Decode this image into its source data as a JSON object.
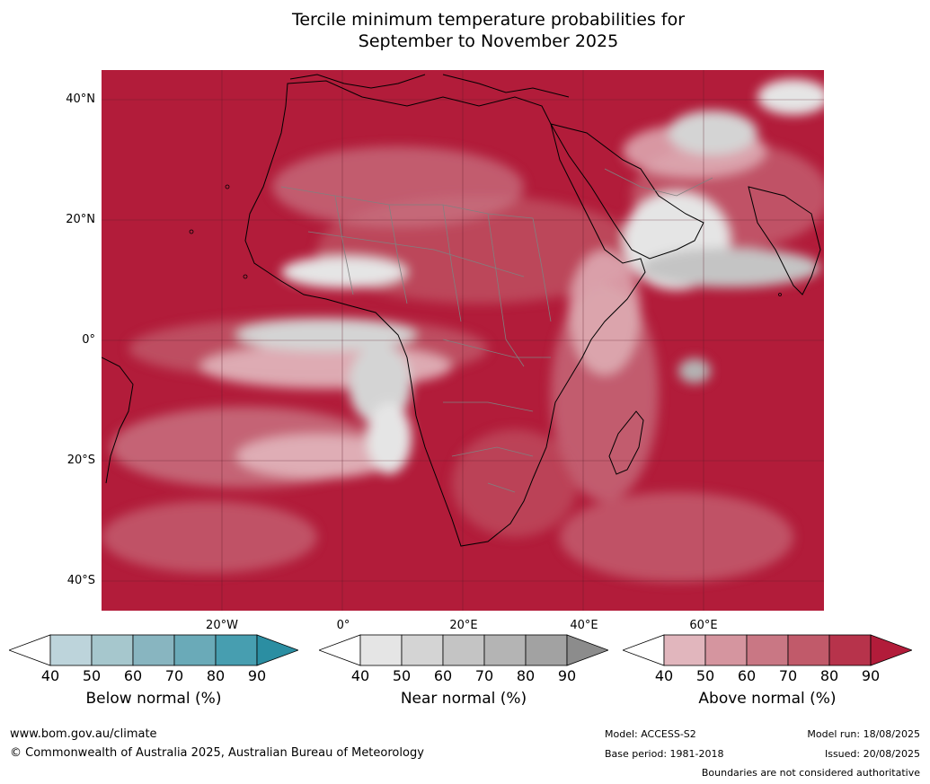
{
  "title_line1": "Tercile minimum temperature probabilities for",
  "title_line2": "September to November 2025",
  "lat_labels": [
    "40°N",
    "20°N",
    "0°",
    "20°S",
    "40°S"
  ],
  "lon_labels": [
    "20°W",
    "0°",
    "20°E",
    "40°E",
    "60°E"
  ],
  "colorbars": {
    "below": {
      "label": "Below normal (%)",
      "ticks": [
        "40",
        "50",
        "60",
        "70",
        "80",
        "90"
      ],
      "colors": [
        "#ffffff",
        "#bdd4db",
        "#a6c7cd",
        "#88b5c0",
        "#6aaab8",
        "#479eb0",
        "#2b8ea2"
      ]
    },
    "near": {
      "label": "Near normal (%)",
      "ticks": [
        "40",
        "50",
        "60",
        "70",
        "80",
        "90"
      ],
      "colors": [
        "#ffffff",
        "#e5e5e5",
        "#d4d4d4",
        "#c4c4c4",
        "#b4b4b4",
        "#a2a2a2",
        "#8c8c8c"
      ]
    },
    "above": {
      "label": "Above normal (%)",
      "ticks": [
        "40",
        "50",
        "60",
        "70",
        "80",
        "90"
      ],
      "colors": [
        "#ffffff",
        "#e1b6bd",
        "#d5959f",
        "#c97784",
        "#c15a6a",
        "#b7334b",
        "#b21c3a"
      ]
    }
  },
  "footer": {
    "url": "www.bom.gov.au/climate",
    "copyright": "© Commonwealth of Australia 2025, Australian Bureau of Meteorology",
    "model": "Model: ACCESS-S2",
    "base_period": "Base period: 1981-2018",
    "model_run": "Model run: 18/08/2025",
    "issued": "Issued: 20/08/2025",
    "disclaimer": "Boundaries are not considered authoritative"
  }
}
